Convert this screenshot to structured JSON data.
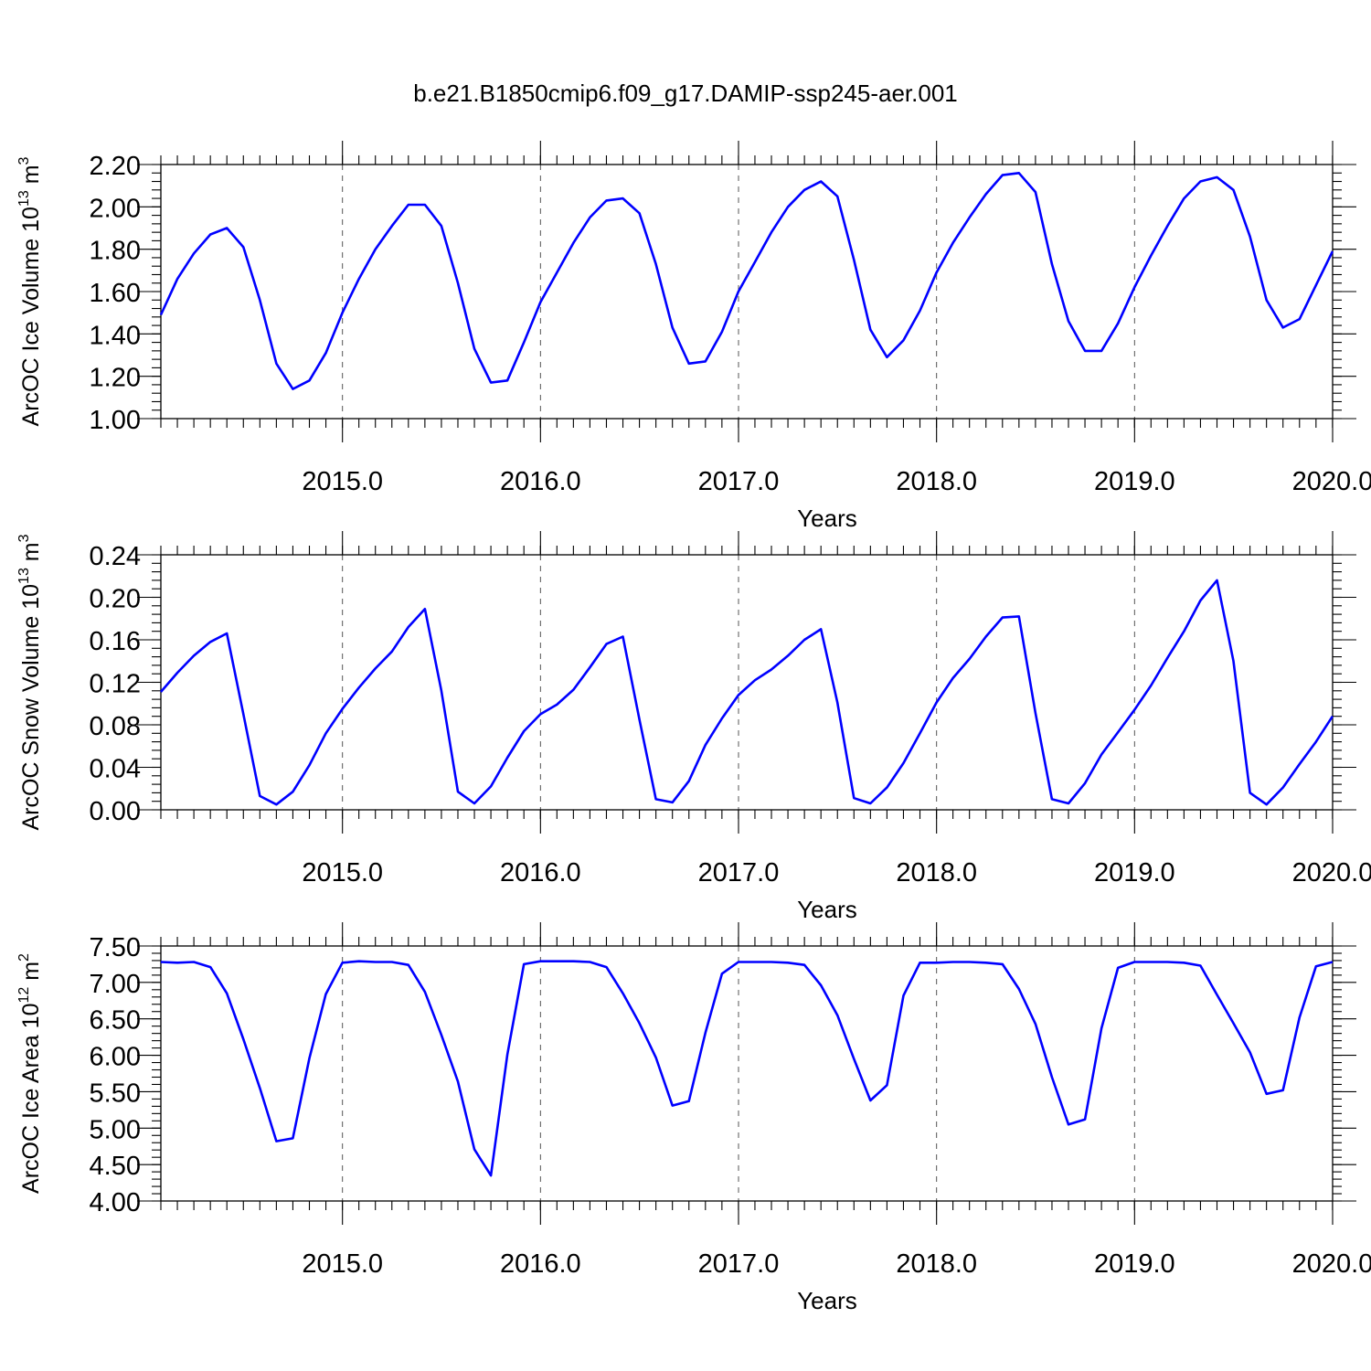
{
  "title": "b.e21.B1850cmip6.f09_g17.DAMIP-ssp245-aer.001",
  "chart_data": [
    {
      "type": "line",
      "xlabel": "Years",
      "ylabel": "ArcOC Ice Volume 10",
      "ylabel_exp": "13",
      "ylabel_unit": " m",
      "ylabel_unit_exp": "3",
      "xlim": [
        2014.083,
        2020.0
      ],
      "ylim": [
        1.0,
        2.2
      ],
      "xticks": [
        2015.0,
        2016.0,
        2017.0,
        2018.0,
        2019.0,
        2020.0
      ],
      "xtick_labels": [
        "2015.0",
        "2016.0",
        "2017.0",
        "2018.0",
        "2019.0",
        "2020.0"
      ],
      "yticks": [
        1.0,
        1.2,
        1.4,
        1.6,
        1.8,
        2.0,
        2.2
      ],
      "ytick_labels": [
        "1.00",
        "1.20",
        "1.40",
        "1.60",
        "1.80",
        "2.00",
        "2.20"
      ],
      "grid": "vertical-dashed",
      "x_start": 2014.083,
      "x_step": 0.08333,
      "values": [
        1.49,
        1.66,
        1.78,
        1.87,
        1.9,
        1.81,
        1.56,
        1.26,
        1.14,
        1.18,
        1.31,
        1.5,
        1.66,
        1.8,
        1.91,
        2.01,
        2.01,
        1.91,
        1.64,
        1.33,
        1.17,
        1.18,
        1.36,
        1.55,
        1.69,
        1.83,
        1.95,
        2.03,
        2.04,
        1.97,
        1.73,
        1.43,
        1.26,
        1.27,
        1.41,
        1.6,
        1.74,
        1.88,
        2.0,
        2.08,
        2.12,
        2.05,
        1.75,
        1.42,
        1.29,
        1.37,
        1.51,
        1.69,
        1.83,
        1.95,
        2.06,
        2.15,
        2.16,
        2.07,
        1.73,
        1.46,
        1.32,
        1.32,
        1.45,
        1.62,
        1.77,
        1.91,
        2.04,
        2.12,
        2.14,
        2.08,
        1.86,
        1.56,
        1.43,
        1.47,
        1.63,
        1.79
      ]
    },
    {
      "type": "line",
      "xlabel": "Years",
      "ylabel": "ArcOC Snow Volume 10",
      "ylabel_exp": "13",
      "ylabel_unit": " m",
      "ylabel_unit_exp": "3",
      "xlim": [
        2014.083,
        2020.0
      ],
      "ylim": [
        0.0,
        0.24
      ],
      "xticks": [
        2015.0,
        2016.0,
        2017.0,
        2018.0,
        2019.0,
        2020.0
      ],
      "xtick_labels": [
        "2015.0",
        "2016.0",
        "2017.0",
        "2018.0",
        "2019.0",
        "2020.0"
      ],
      "yticks": [
        0.0,
        0.04,
        0.08,
        0.12,
        0.16,
        0.2,
        0.24
      ],
      "ytick_labels": [
        "0.00",
        "0.04",
        "0.08",
        "0.12",
        "0.16",
        "0.20",
        "0.24"
      ],
      "grid": "vertical-dashed",
      "x_start": 2014.083,
      "x_step": 0.08333,
      "values": [
        0.111,
        0.129,
        0.145,
        0.158,
        0.166,
        0.09,
        0.013,
        0.005,
        0.017,
        0.042,
        0.072,
        0.095,
        0.115,
        0.133,
        0.149,
        0.172,
        0.189,
        0.112,
        0.017,
        0.006,
        0.022,
        0.049,
        0.074,
        0.09,
        0.099,
        0.113,
        0.134,
        0.156,
        0.163,
        0.085,
        0.01,
        0.007,
        0.027,
        0.061,
        0.086,
        0.108,
        0.122,
        0.132,
        0.145,
        0.16,
        0.17,
        0.101,
        0.011,
        0.006,
        0.021,
        0.044,
        0.072,
        0.101,
        0.124,
        0.142,
        0.163,
        0.181,
        0.182,
        0.091,
        0.01,
        0.006,
        0.025,
        0.052,
        0.073,
        0.094,
        0.117,
        0.143,
        0.168,
        0.197,
        0.216,
        0.14,
        0.016,
        0.005,
        0.021,
        0.043,
        0.064,
        0.088
      ]
    },
    {
      "type": "line",
      "xlabel": "Years",
      "ylabel": "ArcOC Ice Area 10",
      "ylabel_exp": "12",
      "ylabel_unit": " m",
      "ylabel_unit_exp": "2",
      "xlim": [
        2014.083,
        2020.0
      ],
      "ylim": [
        4.0,
        7.5
      ],
      "xticks": [
        2015.0,
        2016.0,
        2017.0,
        2018.0,
        2019.0,
        2020.0
      ],
      "xtick_labels": [
        "2015.0",
        "2016.0",
        "2017.0",
        "2018.0",
        "2019.0",
        "2020.0"
      ],
      "yticks": [
        4.0,
        4.5,
        5.0,
        5.5,
        6.0,
        6.5,
        7.0,
        7.5
      ],
      "ytick_labels": [
        "4.00",
        "4.50",
        "5.00",
        "5.50",
        "6.00",
        "6.50",
        "7.00",
        "7.50"
      ],
      "grid": "vertical-dashed",
      "x_start": 2014.083,
      "x_step": 0.08333,
      "values": [
        7.28,
        7.27,
        7.28,
        7.21,
        6.85,
        6.22,
        5.55,
        4.82,
        4.86,
        5.96,
        6.84,
        7.27,
        7.29,
        7.28,
        7.28,
        7.24,
        6.87,
        6.28,
        5.64,
        4.71,
        4.35,
        6.01,
        7.25,
        7.29,
        7.29,
        7.29,
        7.28,
        7.21,
        6.85,
        6.44,
        5.97,
        5.31,
        5.37,
        6.31,
        7.12,
        7.28,
        7.28,
        7.28,
        7.27,
        7.24,
        6.96,
        6.55,
        5.95,
        5.38,
        5.59,
        6.82,
        7.27,
        7.27,
        7.28,
        7.28,
        7.27,
        7.25,
        6.91,
        6.43,
        5.7,
        5.05,
        5.12,
        6.37,
        7.2,
        7.28,
        7.28,
        7.28,
        7.27,
        7.23,
        6.83,
        6.44,
        6.04,
        5.47,
        5.52,
        6.52,
        7.22,
        7.28
      ]
    }
  ]
}
